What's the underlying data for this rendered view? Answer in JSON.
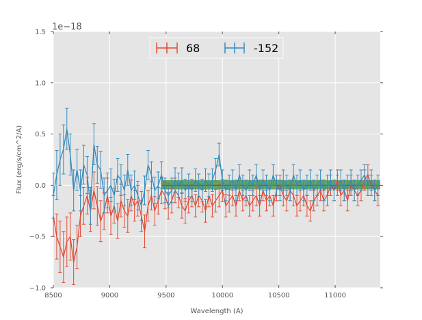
{
  "chart_data": {
    "type": "line",
    "title": "",
    "xlabel": "Wavelength (A)",
    "ylabel": "Flux (erg/s/cm^2/A)",
    "y_offset_label": "1e−18",
    "y_scale": 1e-18,
    "xlim": [
      8500,
      11400
    ],
    "ylim": [
      -1.0,
      1.5
    ],
    "xticks": [
      8500,
      9000,
      9500,
      10000,
      10500,
      11000
    ],
    "xtick_labels": [
      "8500",
      "9000",
      "9500",
      "10000",
      "10500",
      "11000"
    ],
    "yticks": [
      -1.0,
      -0.5,
      0.0,
      0.5,
      1.0,
      1.5
    ],
    "ytick_labels": [
      "−1.0",
      "−0.5",
      "0.0",
      "0.5",
      "1.0",
      "1.5"
    ],
    "grid": true,
    "legend_position": "top-center",
    "background_color": "#e5e5e5",
    "band": {
      "x": [
        9460,
        11400
      ],
      "y": [
        -0.04,
        0.05
      ],
      "color": "#4c9a4c",
      "line_color": "#2f7a2f"
    },
    "series": [
      {
        "name": "68",
        "color": "#e24a33",
        "x": [
          8500,
          8530,
          8560,
          8590,
          8620,
          8650,
          8680,
          8710,
          8740,
          8770,
          8800,
          8830,
          8860,
          8890,
          8920,
          8950,
          8980,
          9010,
          9040,
          9070,
          9100,
          9130,
          9160,
          9190,
          9220,
          9250,
          9280,
          9310,
          9340,
          9370,
          9400,
          9430,
          9460,
          9490,
          9520,
          9550,
          9580,
          9610,
          9640,
          9670,
          9700,
          9730,
          9760,
          9790,
          9820,
          9850,
          9880,
          9910,
          9940,
          9970,
          10000,
          10030,
          10060,
          10090,
          10120,
          10150,
          10180,
          10210,
          10240,
          10270,
          10300,
          10330,
          10360,
          10390,
          10420,
          10450,
          10480,
          10510,
          10540,
          10570,
          10600,
          10630,
          10660,
          10690,
          10720,
          10750,
          10780,
          10810,
          10840,
          10870,
          10900,
          10930,
          10960,
          10990,
          11020,
          11050,
          11080,
          11110,
          11140,
          11170,
          11200,
          11230,
          11260,
          11290,
          11320,
          11350,
          11380
        ],
        "y": [
          -0.3,
          -0.5,
          -0.6,
          -0.7,
          -0.55,
          -0.5,
          -0.75,
          -0.6,
          -0.3,
          -0.2,
          -0.1,
          -0.25,
          -0.05,
          -0.2,
          -0.35,
          -0.25,
          -0.1,
          -0.3,
          -0.2,
          -0.35,
          -0.15,
          -0.25,
          -0.3,
          -0.1,
          -0.2,
          -0.15,
          -0.3,
          -0.45,
          -0.2,
          -0.1,
          -0.25,
          -0.15,
          -0.05,
          -0.1,
          -0.2,
          -0.15,
          -0.05,
          -0.1,
          -0.2,
          -0.25,
          -0.15,
          -0.1,
          -0.2,
          -0.1,
          -0.15,
          -0.25,
          -0.1,
          -0.2,
          -0.15,
          -0.1,
          -0.05,
          -0.2,
          -0.15,
          -0.1,
          -0.2,
          -0.05,
          -0.15,
          -0.1,
          -0.2,
          -0.15,
          -0.1,
          -0.2,
          -0.05,
          -0.15,
          -0.1,
          -0.2,
          -0.05,
          0.0,
          -0.1,
          -0.15,
          -0.05,
          -0.1,
          -0.2,
          -0.15,
          -0.1,
          -0.2,
          -0.25,
          -0.15,
          -0.1,
          -0.05,
          -0.15,
          -0.1,
          0.0,
          -0.05,
          0.05,
          -0.1,
          -0.05,
          -0.15,
          0.0,
          -0.05,
          -0.1,
          -0.05,
          0.05,
          0.1,
          0.0,
          -0.05,
          -0.1
        ],
        "err": [
          0.2,
          0.22,
          0.25,
          0.25,
          0.24,
          0.23,
          0.22,
          0.21,
          0.2,
          0.18,
          0.18,
          0.2,
          0.18,
          0.19,
          0.2,
          0.18,
          0.17,
          0.18,
          0.17,
          0.17,
          0.16,
          0.16,
          0.16,
          0.15,
          0.15,
          0.15,
          0.15,
          0.16,
          0.15,
          0.14,
          0.14,
          0.13,
          0.13,
          0.13,
          0.13,
          0.12,
          0.12,
          0.12,
          0.12,
          0.12,
          0.12,
          0.11,
          0.11,
          0.11,
          0.11,
          0.11,
          0.11,
          0.11,
          0.11,
          0.11,
          0.11,
          0.11,
          0.11,
          0.1,
          0.1,
          0.1,
          0.1,
          0.1,
          0.1,
          0.1,
          0.1,
          0.1,
          0.1,
          0.1,
          0.1,
          0.1,
          0.1,
          0.1,
          0.1,
          0.1,
          0.1,
          0.1,
          0.1,
          0.1,
          0.1,
          0.1,
          0.1,
          0.1,
          0.1,
          0.1,
          0.1,
          0.1,
          0.1,
          0.1,
          0.1,
          0.1,
          0.1,
          0.1,
          0.1,
          0.1,
          0.1,
          0.1,
          0.1,
          0.1,
          0.1,
          0.1,
          0.1
        ]
      },
      {
        "name": "-152",
        "color": "#348abd",
        "x": [
          8500,
          8530,
          8560,
          8590,
          8620,
          8650,
          8680,
          8710,
          8740,
          8770,
          8800,
          8830,
          8860,
          8890,
          8920,
          8950,
          8980,
          9010,
          9040,
          9070,
          9100,
          9130,
          9160,
          9190,
          9220,
          9250,
          9280,
          9310,
          9340,
          9370,
          9400,
          9430,
          9460,
          9490,
          9520,
          9550,
          9580,
          9610,
          9640,
          9670,
          9700,
          9730,
          9760,
          9790,
          9820,
          9850,
          9880,
          9910,
          9940,
          9970,
          10000,
          10030,
          10060,
          10090,
          10120,
          10150,
          10180,
          10210,
          10240,
          10270,
          10300,
          10330,
          10360,
          10390,
          10420,
          10450,
          10480,
          10510,
          10540,
          10570,
          10600,
          10630,
          10660,
          10690,
          10720,
          10750,
          10780,
          10810,
          10840,
          10870,
          10900,
          10930,
          10960,
          10990,
          11020,
          11050,
          11080,
          11110,
          11140,
          11170,
          11200,
          11230,
          11260,
          11290,
          11320,
          11350,
          11380
        ],
        "y": [
          -0.1,
          0.1,
          0.25,
          0.35,
          0.55,
          0.3,
          -0.05,
          0.15,
          -0.05,
          0.2,
          0.1,
          -0.2,
          0.4,
          0.2,
          0.15,
          -0.1,
          -0.05,
          0.0,
          -0.1,
          0.1,
          0.05,
          -0.05,
          0.15,
          -0.05,
          0.0,
          -0.1,
          -0.2,
          -0.05,
          0.2,
          0.1,
          -0.05,
          0.0,
          0.1,
          -0.05,
          -0.1,
          -0.05,
          0.05,
          0.0,
          0.05,
          -0.05,
          0.0,
          -0.05,
          0.05,
          0.0,
          -0.05,
          0.05,
          0.0,
          0.05,
          0.15,
          0.3,
          0.05,
          -0.05,
          0.0,
          0.05,
          -0.05,
          0.1,
          0.0,
          -0.05,
          0.05,
          0.0,
          0.1,
          -0.05,
          0.05,
          0.0,
          -0.05,
          0.1,
          0.0,
          -0.05,
          0.05,
          0.0,
          -0.05,
          0.1,
          0.0,
          0.05,
          -0.05,
          0.0,
          0.05,
          -0.05,
          0.0,
          0.05,
          -0.05,
          0.0,
          0.05,
          -0.05,
          0.0,
          0.05,
          -0.05,
          0.0,
          0.05,
          -0.05,
          0.0,
          0.05,
          0.1,
          0.0,
          0.05,
          -0.05,
          0.0
        ],
        "err": [
          0.22,
          0.24,
          0.25,
          0.24,
          0.2,
          0.2,
          0.2,
          0.2,
          0.2,
          0.19,
          0.18,
          0.18,
          0.2,
          0.18,
          0.18,
          0.17,
          0.17,
          0.16,
          0.16,
          0.16,
          0.15,
          0.15,
          0.15,
          0.15,
          0.14,
          0.14,
          0.14,
          0.14,
          0.14,
          0.13,
          0.13,
          0.13,
          0.13,
          0.12,
          0.12,
          0.12,
          0.12,
          0.12,
          0.12,
          0.11,
          0.11,
          0.11,
          0.11,
          0.11,
          0.11,
          0.11,
          0.11,
          0.11,
          0.11,
          0.11,
          0.1,
          0.1,
          0.1,
          0.1,
          0.1,
          0.1,
          0.1,
          0.1,
          0.1,
          0.1,
          0.1,
          0.1,
          0.1,
          0.1,
          0.1,
          0.1,
          0.1,
          0.1,
          0.1,
          0.1,
          0.1,
          0.1,
          0.1,
          0.1,
          0.1,
          0.1,
          0.1,
          0.1,
          0.1,
          0.1,
          0.1,
          0.1,
          0.1,
          0.1,
          0.1,
          0.1,
          0.1,
          0.1,
          0.1,
          0.1,
          0.1,
          0.1,
          0.1,
          0.1,
          0.1,
          0.1,
          0.1
        ]
      }
    ]
  }
}
